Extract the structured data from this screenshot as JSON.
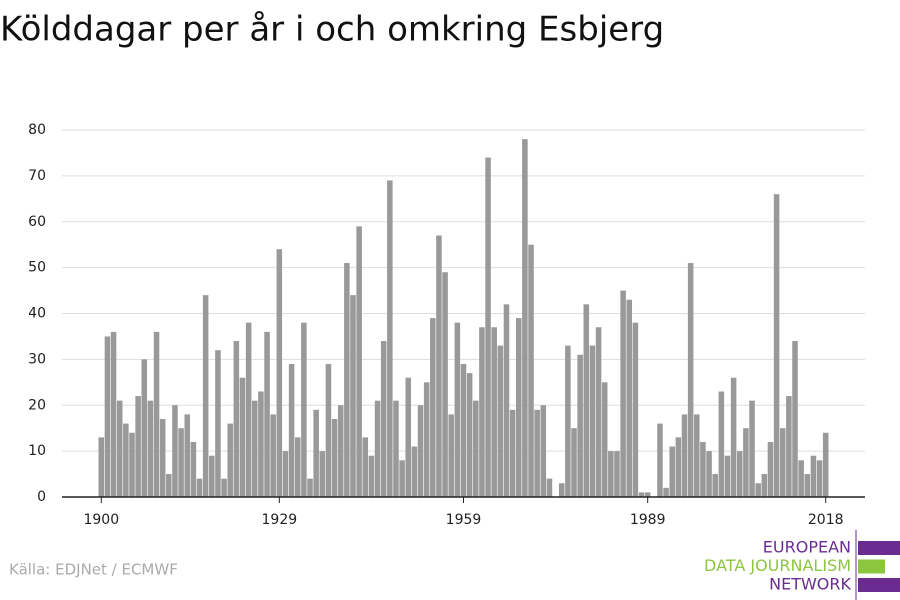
{
  "chart_data": {
    "type": "bar",
    "title": "Kölddagar per år i och omkring Esbjerg",
    "source": "Källa: EDJNet / ECMWF",
    "logo": [
      "EUROPEAN",
      "DATA JOURNALISM",
      "NETWORK"
    ],
    "logo_colors": [
      "#6a2c91",
      "#8cc63f",
      "#6a2c91"
    ],
    "color": "#999999",
    "grid": true,
    "x": [
      1900,
      1901,
      1902,
      1903,
      1904,
      1905,
      1906,
      1907,
      1908,
      1909,
      1910,
      1911,
      1912,
      1913,
      1914,
      1915,
      1916,
      1917,
      1918,
      1919,
      1920,
      1921,
      1922,
      1923,
      1924,
      1925,
      1926,
      1927,
      1928,
      1929,
      1930,
      1931,
      1932,
      1933,
      1934,
      1935,
      1936,
      1937,
      1938,
      1939,
      1940,
      1941,
      1942,
      1943,
      1944,
      1945,
      1946,
      1947,
      1948,
      1949,
      1950,
      1951,
      1952,
      1953,
      1954,
      1955,
      1956,
      1957,
      1958,
      1959,
      1960,
      1961,
      1962,
      1963,
      1964,
      1965,
      1966,
      1967,
      1968,
      1969,
      1970,
      1971,
      1972,
      1973,
      1974,
      1975,
      1976,
      1977,
      1978,
      1979,
      1980,
      1981,
      1982,
      1983,
      1984,
      1985,
      1986,
      1987,
      1988,
      1989,
      1990,
      1991,
      1992,
      1993,
      1994,
      1995,
      1996,
      1997,
      1998,
      1999,
      2000,
      2001,
      2002,
      2003,
      2004,
      2005,
      2006,
      2007,
      2008,
      2009,
      2010,
      2011,
      2012,
      2013,
      2014,
      2015,
      2016,
      2017,
      2018
    ],
    "values": [
      13,
      35,
      36,
      21,
      16,
      14,
      22,
      30,
      21,
      36,
      17,
      5,
      20,
      15,
      18,
      12,
      4,
      44,
      9,
      32,
      4,
      16,
      34,
      26,
      38,
      21,
      23,
      36,
      18,
      54,
      10,
      29,
      13,
      38,
      4,
      19,
      10,
      29,
      17,
      20,
      51,
      44,
      59,
      13,
      9,
      21,
      34,
      69,
      21,
      8,
      26,
      11,
      20,
      25,
      39,
      57,
      49,
      18,
      38,
      29,
      27,
      21,
      37,
      74,
      37,
      33,
      42,
      19,
      39,
      78,
      55,
      19,
      20,
      4,
      0,
      3,
      33,
      15,
      31,
      42,
      33,
      37,
      25,
      10,
      10,
      45,
      43,
      38,
      1,
      1,
      0,
      16,
      2,
      11,
      13,
      18,
      51,
      18,
      12,
      10,
      5,
      23,
      9,
      26,
      10,
      15,
      21,
      3,
      5,
      12,
      66,
      15,
      22,
      34,
      8,
      5,
      9,
      8,
      14
    ],
    "xlim": [
      1893.6,
      2024.4
    ],
    "xticks": [
      1900,
      1929,
      1959,
      1989,
      2018
    ],
    "ylim": [
      0,
      80
    ],
    "yticks": [
      0,
      10,
      20,
      30,
      40,
      50,
      60,
      70,
      80
    ]
  }
}
